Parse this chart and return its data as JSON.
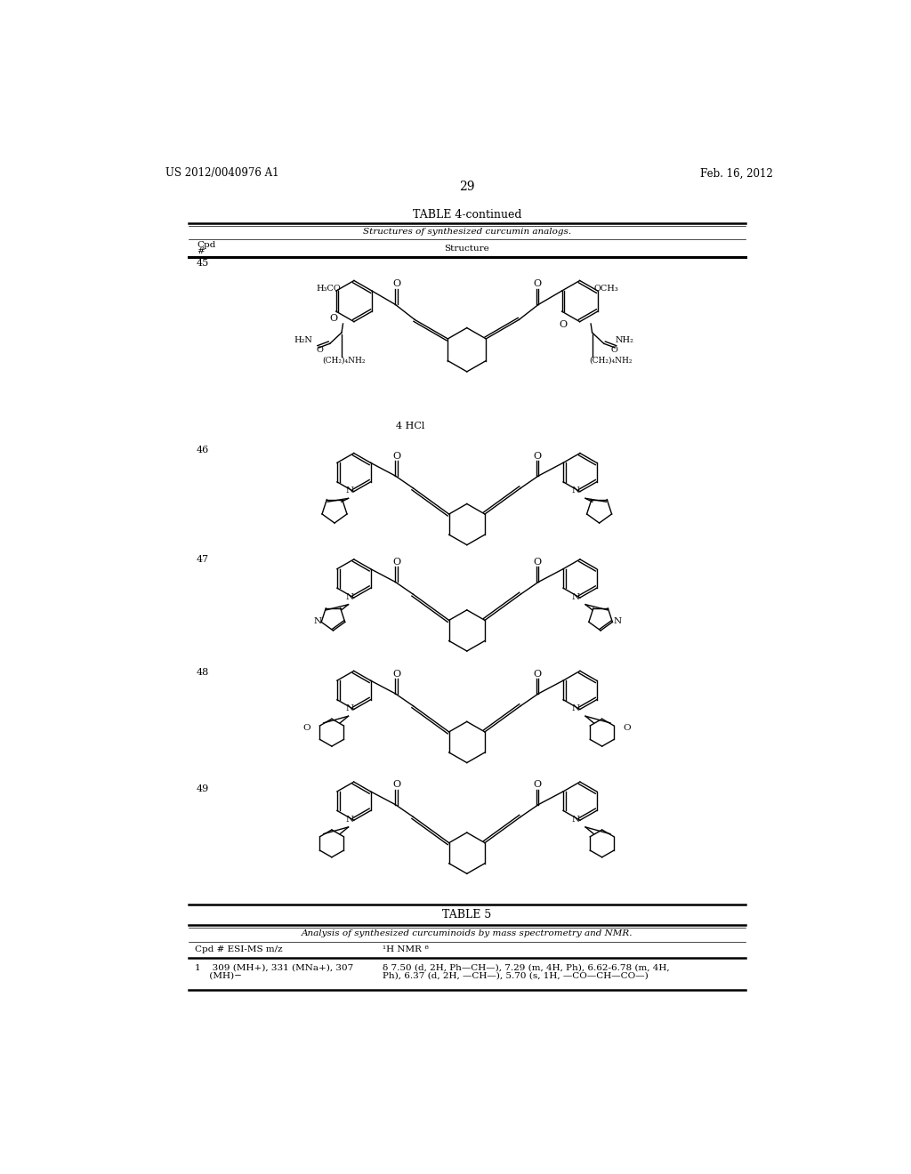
{
  "page_header_left": "US 2012/0040976 A1",
  "page_header_right": "Feb. 16, 2012",
  "page_number": "29",
  "table4_title": "TABLE 4-continued",
  "table4_subtitle": "Structures of synthesized curcumin analogs.",
  "col1_header_line1": "Cpd",
  "col1_header_line2": "#",
  "col2_header": "Structure",
  "table5_title": "TABLE 5",
  "table5_subtitle": "Analysis of synthesized curcuminoids by mass spectrometry and NMR.",
  "table5_col1": "Cpd # ESI-MS m/z",
  "table5_col2": "¹H NMR ª",
  "cpd45_note": "4 HCl",
  "bg_color": "#ffffff",
  "text_color": "#000000"
}
